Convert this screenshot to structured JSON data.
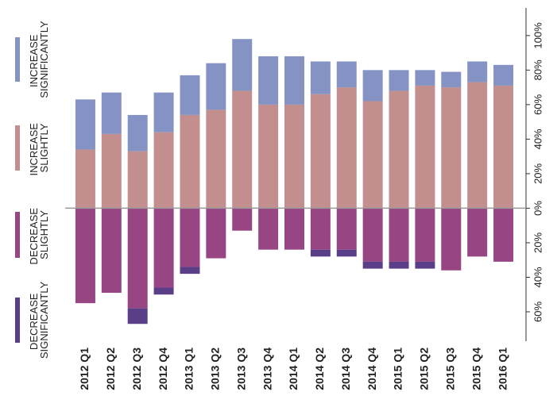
{
  "chart_data": {
    "type": "bar",
    "categories": [
      "2012 Q1",
      "2012 Q2",
      "2012 Q3",
      "2012 Q4",
      "2013 Q1",
      "2013 Q2",
      "2013 Q3",
      "2013 Q4",
      "2014 Q1",
      "2014 Q2",
      "2014 Q3",
      "2014 Q4",
      "2015 Q1",
      "2015 Q2",
      "2015 Q3",
      "2015 Q4",
      "2016 Q1"
    ],
    "series": [
      {
        "name": "INCREASE SIGNIFICANTLY",
        "color": "#8493c3",
        "values": [
          29,
          24,
          21,
          23,
          23,
          27,
          30,
          28,
          28,
          19,
          15,
          18,
          12,
          9,
          9,
          12,
          12
        ]
      },
      {
        "name": "INCREASE SLIGHTLY",
        "color": "#c28f8e",
        "values": [
          34,
          43,
          33,
          44,
          54,
          57,
          68,
          60,
          60,
          66,
          70,
          62,
          68,
          71,
          70,
          73,
          71
        ]
      },
      {
        "name": "DECREASE SLIGHTLY",
        "color": "#974583",
        "values": [
          -55,
          -49,
          -58,
          -46,
          -34,
          -29,
          -13,
          -24,
          -24,
          -24,
          -24,
          -31,
          -31,
          -31,
          -36,
          -28,
          -31
        ]
      },
      {
        "name": "DECREASE SIGNIFICANTLY",
        "color": "#5a3e88",
        "values": [
          0,
          0,
          -9,
          -4,
          -4,
          0,
          0,
          0,
          0,
          -4,
          -4,
          -4,
          -4,
          -4,
          0,
          0,
          0
        ]
      }
    ],
    "ylim": [
      -77,
      116
    ],
    "yticks": [
      {
        "value": -60,
        "label": "60%"
      },
      {
        "value": -40,
        "label": "40%"
      },
      {
        "value": -20,
        "label": "20%"
      },
      {
        "value": 0,
        "label": "0%"
      },
      {
        "value": 20,
        "label": "20%"
      },
      {
        "value": 40,
        "label": "40%"
      },
      {
        "value": 60,
        "label": "60%"
      },
      {
        "value": 80,
        "label": "80%"
      },
      {
        "value": 100,
        "label": "100%"
      }
    ]
  }
}
